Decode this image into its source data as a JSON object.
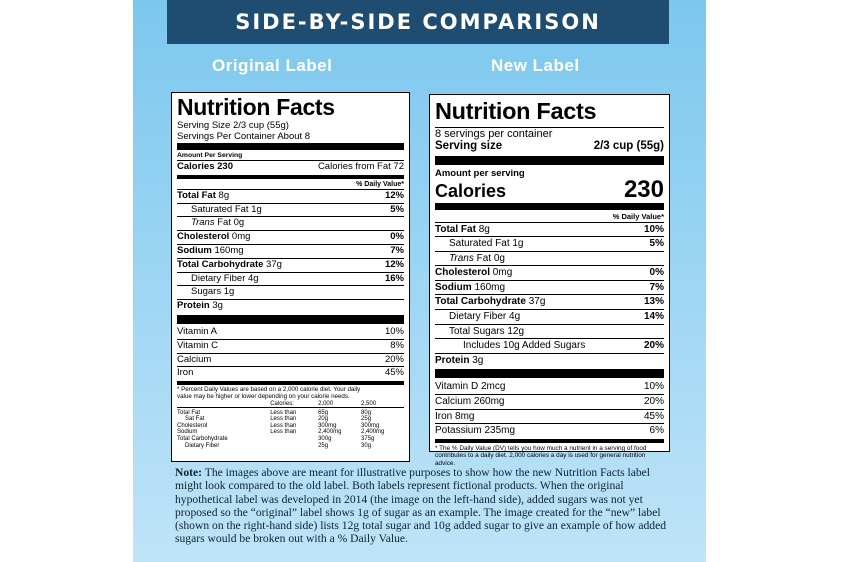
{
  "header": {
    "title": "SIDE-BY-SIDE COMPARISON"
  },
  "columns": {
    "left": "Original Label",
    "right": "New Label"
  },
  "old_label": {
    "title": "Nutrition Facts",
    "serving_size": "Serving Size 2/3 cup (55g)",
    "servings_per": "Servings Per Container About 8",
    "amount_per": "Amount Per Serving",
    "calories": "Calories 230",
    "calories_fat": "Calories from Fat 72",
    "dv_header": "% Daily Value*",
    "nutrients": [
      {
        "name": "Total Fat",
        "amt": "8g",
        "dv": "12%"
      },
      {
        "name": "Saturated Fat",
        "amt": "1g",
        "dv": "5%"
      },
      {
        "name": "Trans",
        "amt": "Fat 0g",
        "dv": ""
      },
      {
        "name": "Cholesterol",
        "amt": "0mg",
        "dv": "0%"
      },
      {
        "name": "Sodium",
        "amt": "160mg",
        "dv": "7%"
      },
      {
        "name": "Total Carbohydrate",
        "amt": "37g",
        "dv": "12%"
      },
      {
        "name": "Dietary Fiber",
        "amt": "4g",
        "dv": "16%"
      },
      {
        "name": "Sugars",
        "amt": "1g",
        "dv": ""
      },
      {
        "name": "Protein",
        "amt": "3g",
        "dv": ""
      }
    ],
    "vitamins": [
      {
        "name": "Vitamin A",
        "dv": "10%"
      },
      {
        "name": "Vitamin C",
        "dv": "8%"
      },
      {
        "name": "Calcium",
        "dv": "20%"
      },
      {
        "name": "Iron",
        "dv": "45%"
      }
    ],
    "footnote": "* Percent Daily Values are based on a 2,000 calorie diet. Your daily value may be higher or lower depending on your calorie needs.",
    "table_header": [
      "Calories:",
      "2,000",
      "2,500"
    ],
    "table_rows": [
      [
        "Total Fat",
        "Less than",
        "65g",
        "80g"
      ],
      [
        "Sat Fat",
        "Less than",
        "20g",
        "25g"
      ],
      [
        "Cholesterol",
        "Less than",
        "300mg",
        "300mg"
      ],
      [
        "Sodium",
        "Less than",
        "2,400mg",
        "2,400mg"
      ],
      [
        "Total Carbohydrate",
        "",
        "300g",
        "375g"
      ],
      [
        "Dietary Fiber",
        "",
        "25g",
        "30g"
      ]
    ]
  },
  "new_label": {
    "title": "Nutrition Facts",
    "servings_per": "8 servings per container",
    "serving_size_label": "Serving size",
    "serving_size_value": "2/3 cup (55g)",
    "amount_per": "Amount per serving",
    "calories_label": "Calories",
    "calories_value": "230",
    "dv_header": "% Daily Value*",
    "nutrients": [
      {
        "name": "Total Fat",
        "amt": "8g",
        "dv": "10%"
      },
      {
        "name": "Saturated Fat",
        "amt": "1g",
        "dv": "5%"
      },
      {
        "name": "Trans",
        "amt": "Fat 0g",
        "dv": ""
      },
      {
        "name": "Cholesterol",
        "amt": "0mg",
        "dv": "0%"
      },
      {
        "name": "Sodium",
        "amt": "160mg",
        "dv": "7%"
      },
      {
        "name": "Total Carbohydrate",
        "amt": "37g",
        "dv": "13%"
      },
      {
        "name": "Dietary Fiber",
        "amt": "4g",
        "dv": "14%"
      },
      {
        "name": "Total Sugars",
        "amt": "12g",
        "dv": ""
      },
      {
        "name": "Includes 10g Added Sugars",
        "amt": "",
        "dv": "20%"
      },
      {
        "name": "Protein",
        "amt": "3g",
        "dv": ""
      }
    ],
    "vitamins": [
      {
        "name": "Vitamin D 2mcg",
        "dv": "10%"
      },
      {
        "name": "Calcium 260mg",
        "dv": "20%"
      },
      {
        "name": "Iron 8mg",
        "dv": "45%"
      },
      {
        "name": "Potassium 235mg",
        "dv": "6%"
      }
    ],
    "footnote": "* The % Daily Value (DV) tells you how much a nutrient in a serving of food contributes to a daily diet. 2,000 calories a day is used for general nutrition advice."
  },
  "note": {
    "lead": "Note:",
    "text": " The images above are meant for illustrative purposes to show how the new Nutrition Facts label might look compared to the old label. Both labels represent fictional products. When the original hypothetical label was developed in 2014 (the image on the left-hand side), added sugars was not yet proposed so the “original” label shows 1g of sugar as an example. The image created for the “new” label (shown on the right-hand side) lists 12g total sugar and 10g added sugar to give an example of how added sugars would be broken out with a % Daily Value."
  }
}
